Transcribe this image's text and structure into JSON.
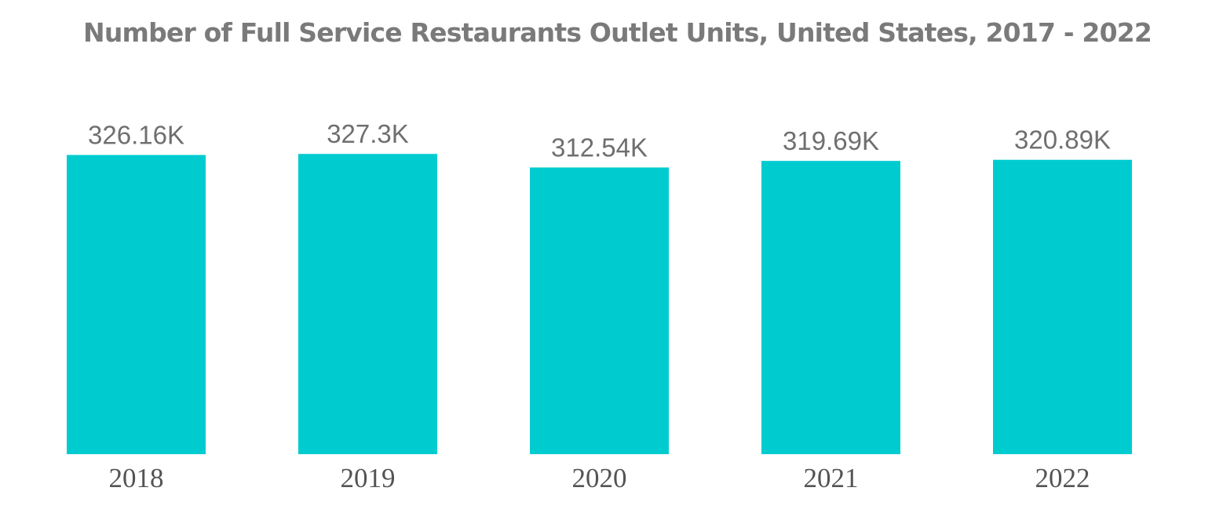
{
  "title": "Number of Full Service Restaurants Outlet Units, United States, 2017 - 2022",
  "colors": {
    "bar": "#00ccd0",
    "title": "#7a7a7a",
    "value_label": "#6f6f6f",
    "tick_label": "#545454"
  },
  "chart_data": {
    "type": "bar",
    "title": "Number of Full Service Restaurants Outlet Units, United States, 2017 - 2022",
    "xlabel": "",
    "ylabel": "",
    "categories": [
      "2018",
      "2019",
      "2020",
      "2021",
      "2022"
    ],
    "values": [
      326.16,
      327.3,
      312.54,
      319.69,
      320.89
    ],
    "value_labels": [
      "326.16K",
      "327.3K",
      "312.54K",
      "319.69K",
      "320.89K"
    ],
    "unit": "K",
    "grid": false,
    "legend": "none"
  }
}
